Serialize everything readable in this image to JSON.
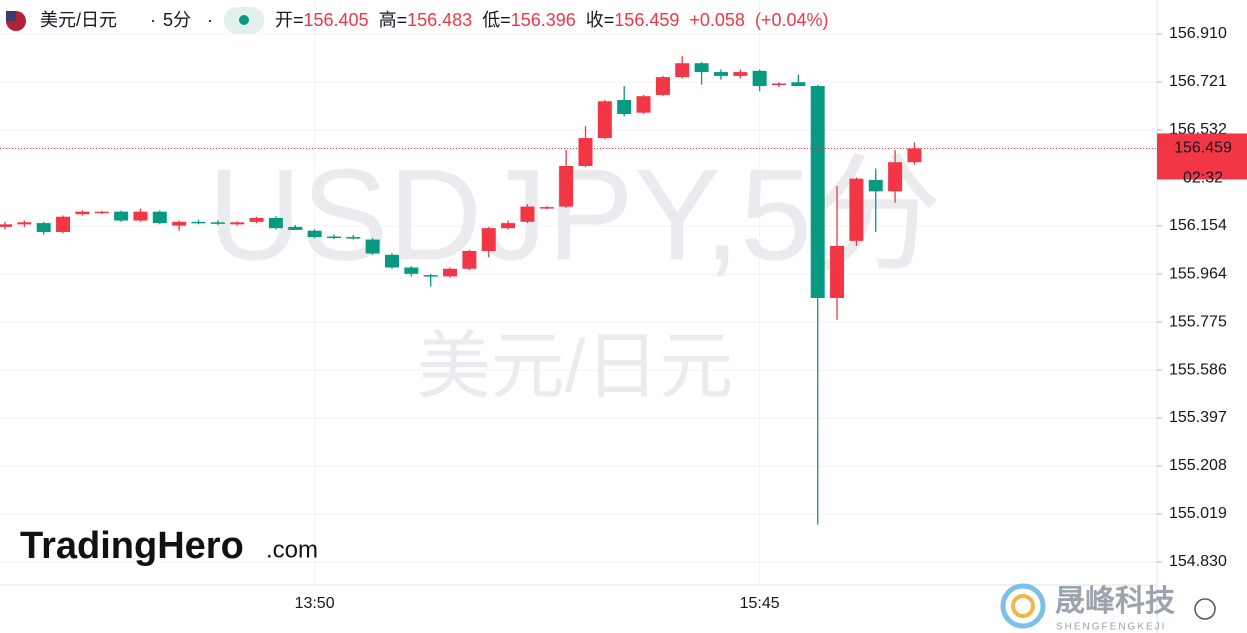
{
  "header": {
    "symbol": "美元/日元",
    "interval": "5分",
    "open_label": "开=",
    "open": 156.405,
    "high_label": "高=",
    "high": 156.483,
    "low_label": "低=",
    "low": 156.396,
    "close_label": "收=",
    "close": 156.459,
    "change": "+0.058",
    "change_pct": "(+0.04%)"
  },
  "watermark": {
    "ticker": "USDJPY,5分",
    "name": "美元/日元"
  },
  "branding": {
    "tradinghero": "TradingHero",
    "tradinghero_suffix": ".com",
    "company": "晟峰科技",
    "company_pinyin": "SHENGFENGKEJI"
  },
  "chart_data": {
    "type": "candlestick",
    "categories": [
      null,
      null,
      null,
      null,
      null,
      null,
      null,
      null,
      null,
      null,
      null,
      null,
      null,
      null,
      null,
      null,
      "13:50",
      null,
      null,
      null,
      null,
      null,
      null,
      null,
      null,
      null,
      null,
      null,
      null,
      null,
      null,
      null,
      null,
      null,
      null,
      null,
      null,
      null,
      null,
      "15:45",
      null,
      null,
      null,
      null,
      null,
      null,
      null,
      null
    ],
    "open": [
      156.15,
      156.16,
      156.165,
      156.13,
      156.2,
      156.205,
      156.21,
      156.175,
      156.21,
      156.155,
      156.17,
      156.168,
      156.16,
      156.17,
      156.185,
      156.15,
      156.135,
      156.112,
      156.11,
      156.1,
      156.04,
      155.99,
      155.96,
      155.955,
      155.985,
      156.055,
      156.145,
      156.17,
      156.225,
      156.23,
      156.39,
      156.5,
      156.65,
      156.6,
      156.67,
      156.74,
      156.795,
      156.76,
      156.745,
      156.765,
      156.71,
      156.72,
      156.705,
      155.87,
      156.095,
      156.335,
      156.29,
      156.405
    ],
    "high": [
      156.17,
      156.175,
      156.17,
      156.195,
      156.215,
      156.212,
      156.215,
      156.222,
      156.215,
      156.175,
      156.178,
      156.176,
      156.172,
      156.19,
      156.192,
      156.158,
      156.14,
      156.12,
      156.118,
      156.105,
      156.045,
      155.995,
      155.965,
      155.99,
      156.06,
      156.15,
      156.175,
      156.24,
      156.232,
      156.453,
      156.547,
      156.65,
      156.705,
      156.67,
      156.745,
      156.823,
      156.8,
      156.77,
      156.77,
      156.77,
      156.72,
      156.75,
      156.71,
      156.31,
      156.345,
      156.38,
      156.453,
      156.483
    ],
    "low": [
      156.14,
      156.15,
      156.12,
      156.125,
      156.195,
      156.2,
      156.17,
      156.17,
      156.16,
      156.135,
      156.16,
      156.158,
      156.155,
      156.165,
      156.14,
      156.14,
      156.105,
      156.102,
      156.1,
      156.04,
      155.985,
      155.955,
      155.915,
      155.95,
      155.98,
      156.03,
      156.14,
      156.165,
      156.22,
      156.225,
      156.385,
      156.495,
      156.585,
      156.595,
      156.665,
      156.735,
      156.71,
      156.73,
      156.735,
      156.685,
      156.7,
      156.71,
      154.977,
      155.784,
      156.075,
      156.13,
      156.245,
      156.396
    ],
    "close": [
      156.16,
      156.168,
      156.13,
      156.19,
      156.21,
      156.21,
      156.175,
      156.21,
      156.165,
      156.17,
      156.165,
      156.162,
      156.168,
      156.185,
      156.145,
      156.138,
      156.11,
      156.108,
      156.105,
      156.045,
      155.99,
      155.965,
      155.955,
      155.985,
      156.055,
      156.145,
      156.165,
      156.23,
      156.228,
      156.39,
      156.5,
      156.645,
      156.595,
      156.665,
      156.74,
      156.795,
      156.76,
      156.745,
      156.76,
      156.705,
      156.715,
      156.705,
      155.87,
      156.075,
      156.34,
      156.29,
      156.405,
      156.459
    ],
    "up_color": "#f23645",
    "down_color": "#089981",
    "ylim": [
      154.739,
      157.044
    ],
    "yticks": [
      {
        "value": 156.91,
        "label": "156.910"
      },
      156.721,
      156.532,
      156.154,
      155.964,
      155.775,
      155.586,
      155.397,
      155.208,
      155.019,
      {
        "value": 154.83,
        "label": "154.830"
      }
    ],
    "grid": true,
    "last_price": 156.459,
    "countdown": "02:32"
  }
}
